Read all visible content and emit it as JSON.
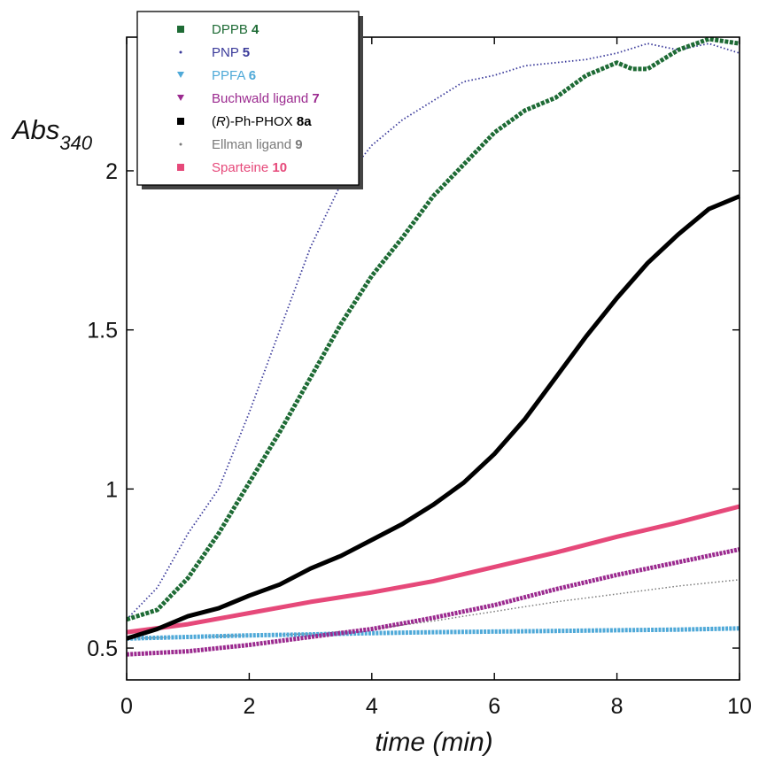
{
  "chart_data": {
    "type": "line",
    "title": "",
    "xlabel": "time (min)",
    "ylabel": {
      "main": "Abs",
      "sub": "340"
    },
    "xlim": [
      0,
      10
    ],
    "ylim": [
      0.4,
      2.42
    ],
    "xticks": [
      "0",
      "2",
      "4",
      "6",
      "8",
      "10"
    ],
    "xtick_values": [
      0,
      2,
      4,
      6,
      8,
      10
    ],
    "yticks": [
      "0.5",
      "1",
      "1.5",
      "2"
    ],
    "ytick_values": [
      0.5,
      1,
      1.5,
      2
    ],
    "grid": false,
    "legend_position": "top-left",
    "series": [
      {
        "name": "DPPB",
        "id": "4",
        "color": "#1e6b35",
        "style": "dense-squares",
        "x": [
          0,
          0.5,
          1,
          1.5,
          2,
          2.5,
          3,
          3.5,
          4,
          4.5,
          5,
          5.5,
          6,
          6.5,
          7,
          7.5,
          8,
          8.25,
          8.5,
          9,
          9.5,
          10
        ],
        "y": [
          0.59,
          0.62,
          0.72,
          0.86,
          1.02,
          1.18,
          1.35,
          1.52,
          1.67,
          1.79,
          1.92,
          2.02,
          2.12,
          2.19,
          2.23,
          2.3,
          2.34,
          2.32,
          2.32,
          2.38,
          2.42,
          2.4
        ]
      },
      {
        "name": "PNP",
        "id": "5",
        "color": "#3a3a9a",
        "style": "dotted",
        "x": [
          0,
          0.5,
          1,
          1.5,
          2,
          2.5,
          3,
          3.5,
          4,
          4.5,
          5,
          5.25,
          5.5,
          6,
          6.5,
          7,
          7.5,
          8,
          8.5,
          9,
          9.5,
          10
        ],
        "y": [
          0.59,
          0.69,
          0.86,
          1.0,
          1.24,
          1.5,
          1.76,
          1.96,
          2.08,
          2.16,
          2.22,
          2.25,
          2.28,
          2.3,
          2.33,
          2.34,
          2.35,
          2.37,
          2.4,
          2.38,
          2.4,
          2.37
        ]
      },
      {
        "name": "PPFA",
        "id": "6",
        "color": "#4fa9d8",
        "style": "triangles",
        "x": [
          0,
          1,
          2,
          3,
          4,
          5,
          6,
          7,
          8,
          9,
          10
        ],
        "y": [
          0.53,
          0.535,
          0.54,
          0.543,
          0.547,
          0.55,
          0.552,
          0.554,
          0.556,
          0.558,
          0.562
        ]
      },
      {
        "name": "Buchwald ligand",
        "id": "7",
        "color": "#9b2a8f",
        "style": "triangles",
        "x": [
          0,
          1,
          2,
          3,
          4,
          5,
          6,
          7,
          8,
          9,
          10
        ],
        "y": [
          0.48,
          0.49,
          0.51,
          0.535,
          0.56,
          0.595,
          0.635,
          0.685,
          0.73,
          0.77,
          0.81
        ]
      },
      {
        "name": "(R)-Ph-PHOX",
        "id": "8a",
        "color": "#000000",
        "style": "solid-thick",
        "x": [
          0,
          0.5,
          1,
          1.5,
          2,
          2.5,
          3,
          3.5,
          4,
          4.5,
          5,
          5.5,
          6,
          6.5,
          7,
          7.5,
          8,
          8.5,
          9,
          9.5,
          10
        ],
        "y": [
          0.53,
          0.56,
          0.6,
          0.625,
          0.665,
          0.7,
          0.75,
          0.79,
          0.84,
          0.89,
          0.95,
          1.02,
          1.11,
          1.22,
          1.35,
          1.48,
          1.6,
          1.71,
          1.8,
          1.88,
          1.92
        ]
      },
      {
        "name": "Ellman ligand",
        "id": "9",
        "color": "#7a7a7a",
        "style": "dotted",
        "x": [
          0,
          1,
          2,
          3,
          4,
          5,
          6,
          7,
          8,
          9,
          10
        ],
        "y": [
          0.53,
          0.535,
          0.54,
          0.545,
          0.56,
          0.585,
          0.615,
          0.645,
          0.67,
          0.695,
          0.715
        ]
      },
      {
        "name": "Sparteine",
        "id": "10",
        "color": "#e6497a",
        "style": "solid-thick",
        "x": [
          0,
          1,
          2,
          3,
          4,
          5,
          6,
          7,
          8,
          9,
          10
        ],
        "y": [
          0.55,
          0.575,
          0.61,
          0.645,
          0.675,
          0.71,
          0.755,
          0.8,
          0.85,
          0.895,
          0.945
        ]
      }
    ]
  }
}
